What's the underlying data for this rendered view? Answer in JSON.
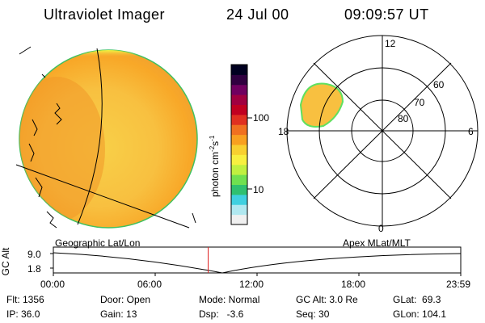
{
  "header": {
    "instrument": "Ultraviolet Imager",
    "date": "24 Jul 00",
    "time": "09:09:57 UT"
  },
  "colorbar": {
    "label": "photon cm",
    "sup1": "-2",
    "mid": "s",
    "sup2": "-1",
    "ticks": [
      "100",
      "10"
    ],
    "colors": [
      "#f0f0f0",
      "#b0e8f0",
      "#40d0e0",
      "#30c070",
      "#70e050",
      "#c0f040",
      "#f8f040",
      "#f8d030",
      "#f8a020",
      "#f07020",
      "#e03020",
      "#c00020",
      "#a00040",
      "#700060",
      "#300040",
      "#000020"
    ]
  },
  "polar": {
    "mlt_labels": {
      "top": "12",
      "left": "18",
      "right": "6",
      "bottom": "0"
    },
    "lat_labels": [
      "60",
      "70",
      "80"
    ]
  },
  "track": {
    "left_label": "Geographic Lat/Lon",
    "right_label": "Apex MLat/MLT",
    "axis_title": "GC Alt",
    "y_ticks": [
      "9.0",
      "1.8"
    ],
    "time_ticks": [
      "00:00",
      "06:00",
      "12:00",
      "18:00",
      "23:59"
    ],
    "marker_time_fraction": 0.38
  },
  "info": {
    "flt": "Flt: 1356",
    "ip": "IP: 36.0",
    "door": "Door: Open",
    "gain": "Gain: 13",
    "mode": "Mode: Normal",
    "dsp": "Dsp:   -3.6",
    "gcalt": "GC Alt: 3.0 Re",
    "seq": "Seq: 30",
    "glat": "GLat:  69.3",
    "glon": "GLon: 104.1"
  }
}
